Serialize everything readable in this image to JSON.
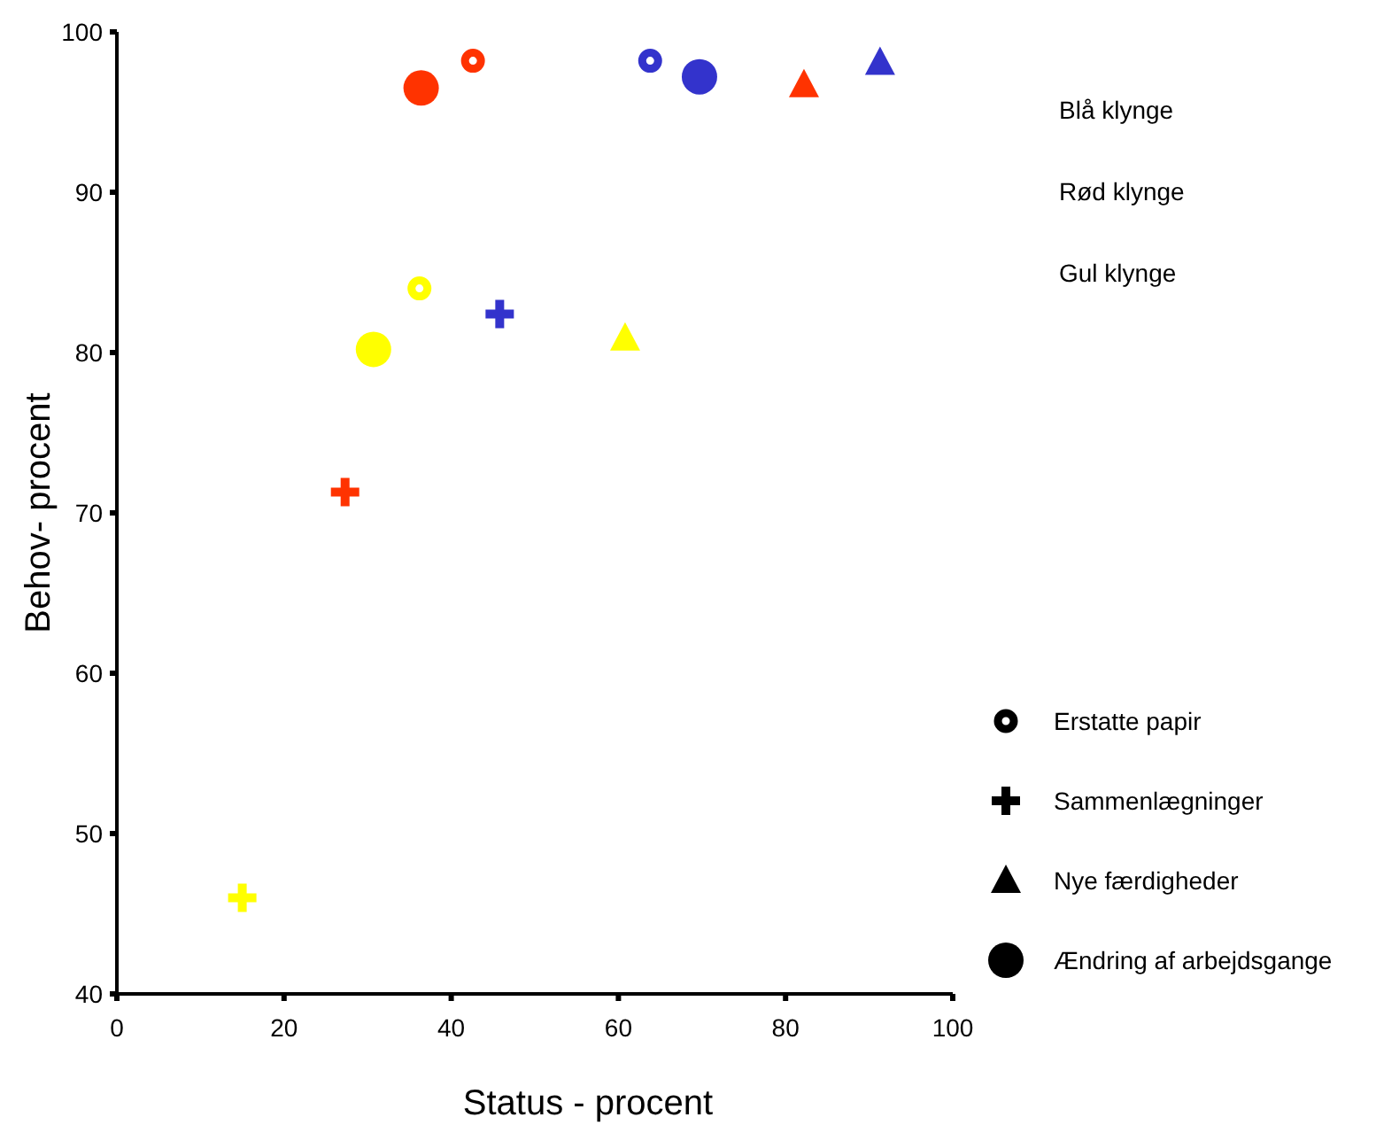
{
  "chart_data": {
    "type": "scatter",
    "xlabel": "Status - procent",
    "ylabel": "Behov- procent",
    "xlim": [
      0,
      100
    ],
    "xticks": [
      0,
      20,
      40,
      60,
      80,
      100
    ],
    "ylim": [
      40,
      100
    ],
    "yticks": [
      40,
      50,
      60,
      70,
      80,
      90,
      100
    ],
    "grid": false,
    "annotations": [
      "Blå klynge",
      "Rød klynge",
      "Gul klynge",
      "Erstatte papir",
      "Sammenlægninger",
      "Nye færdigheder",
      "Ændring af arbejdsgange"
    ],
    "series": [
      {
        "marker": "circle",
        "x": [
          42.6,
          63.8,
          36.2
        ],
        "values": [
          98.2,
          98.2,
          84.0
        ],
        "colors": [
          "#ff3300",
          "#3333cc",
          "#ffff00"
        ]
      },
      {
        "marker": "cross",
        "x": [
          45.8,
          27.3,
          15.0
        ],
        "values": [
          82.4,
          71.3,
          46.0
        ],
        "colors": [
          "#3333cc",
          "#ff3300",
          "#ffff00"
        ]
      },
      {
        "marker": "triangle",
        "x": [
          91.3,
          82.2,
          60.8
        ],
        "values": [
          98.1,
          96.7,
          80.9
        ],
        "colors": [
          "#3333cc",
          "#ff3300",
          "#ffff00"
        ]
      },
      {
        "marker": "circle",
        "x": [
          69.7,
          36.4,
          30.7
        ],
        "values": [
          97.2,
          96.5,
          80.2
        ],
        "colors": [
          "#3333cc",
          "#ff3300",
          "#ffff00"
        ]
      }
    ]
  }
}
